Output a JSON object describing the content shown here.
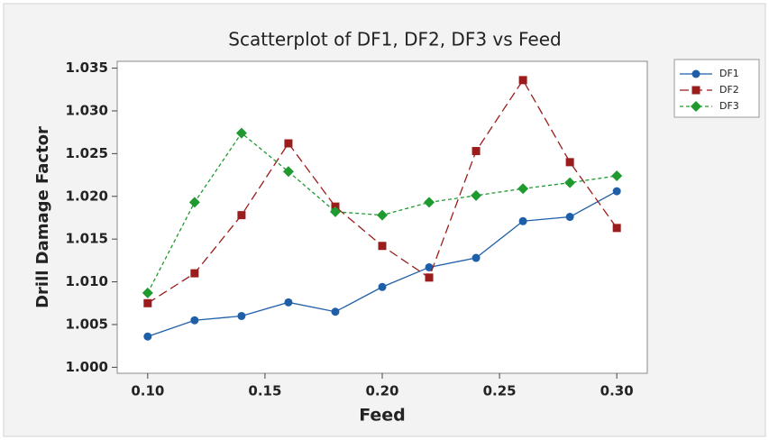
{
  "chart_data": {
    "type": "line",
    "title": "Scatterplot of DF1, DF2, DF3 vs Feed",
    "x_label": "Feed",
    "y_label": "Drill Damage Factor",
    "x": [
      0.1,
      0.12,
      0.14,
      0.16,
      0.18,
      0.2,
      0.22,
      0.24,
      0.26,
      0.28,
      0.3
    ],
    "series": [
      {
        "name": "DF1",
        "color": "#1f5fa8",
        "marker": "circle",
        "dash": "none",
        "values": [
          1.0036,
          1.0055,
          1.006,
          1.0076,
          1.0065,
          1.0094,
          1.0117,
          1.0128,
          1.0171,
          1.0176,
          1.0206
        ]
      },
      {
        "name": "DF2",
        "color": "#9b1c1c",
        "marker": "square",
        "dash": "long",
        "values": [
          1.0075,
          1.011,
          1.0178,
          1.0262,
          1.0188,
          1.0142,
          1.0105,
          1.0253,
          1.0336,
          1.024,
          1.0163
        ]
      },
      {
        "name": "DF3",
        "color": "#1f9a2f",
        "marker": "diamond",
        "dash": "short",
        "values": [
          1.0087,
          1.0193,
          1.0274,
          1.0229,
          1.0182,
          1.0178,
          1.0193,
          1.0201,
          1.0209,
          1.0216,
          1.0224
        ]
      }
    ],
    "xlim": [
      0.087,
      0.313
    ],
    "xticks": [
      {
        "value": 0.1,
        "label": "0.10"
      },
      {
        "value": 0.15,
        "label": "0.15"
      },
      {
        "value": 0.2,
        "label": "0.20"
      },
      {
        "value": 0.25,
        "label": "0.25"
      },
      {
        "value": 0.3,
        "label": "0.30"
      }
    ],
    "ylim": [
      0.9993,
      1.0358
    ],
    "yticks": [
      {
        "value": 1.0,
        "label": "1.000"
      },
      {
        "value": 1.005,
        "label": "1.005"
      },
      {
        "value": 1.01,
        "label": "1.010"
      },
      {
        "value": 1.015,
        "label": "1.015"
      },
      {
        "value": 1.02,
        "label": "1.020"
      },
      {
        "value": 1.025,
        "label": "1.025"
      },
      {
        "value": 1.03,
        "label": "1.030"
      },
      {
        "value": 1.035,
        "label": "1.035"
      }
    ],
    "legend": "right"
  }
}
